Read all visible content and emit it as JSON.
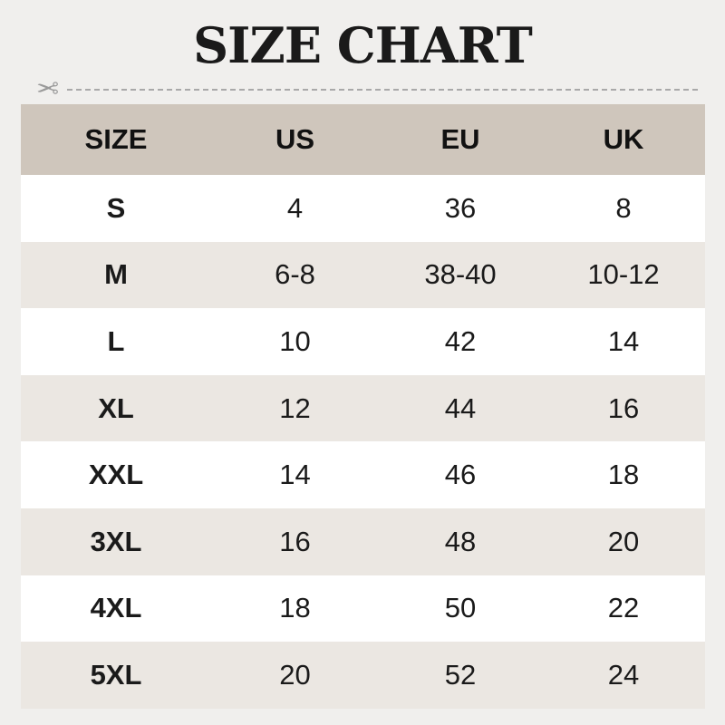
{
  "title": "SIZE CHART",
  "icons": {
    "cut": "scissors-icon"
  },
  "colors": {
    "background": "#f0efed",
    "header": "#cfc6bc",
    "row_alt": "#ebe7e2",
    "row": "#ffffff"
  },
  "table": {
    "headers": [
      "SIZE",
      "US",
      "EU",
      "UK"
    ],
    "rows": [
      [
        "S",
        "4",
        "36",
        "8"
      ],
      [
        "M",
        "6-8",
        "38-40",
        "10-12"
      ],
      [
        "L",
        "10",
        "42",
        "14"
      ],
      [
        "XL",
        "12",
        "44",
        "16"
      ],
      [
        "XXL",
        "14",
        "46",
        "18"
      ],
      [
        "3XL",
        "16",
        "48",
        "20"
      ],
      [
        "4XL",
        "18",
        "50",
        "22"
      ],
      [
        "5XL",
        "20",
        "52",
        "24"
      ]
    ]
  }
}
